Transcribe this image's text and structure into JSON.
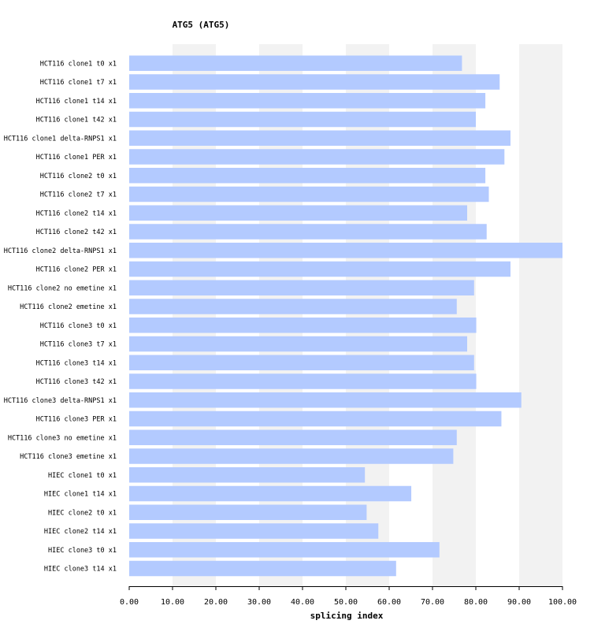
{
  "chart_data": {
    "type": "bar",
    "orientation": "horizontal",
    "title": "ATG5 (ATG5)",
    "xlabel": "splicing index",
    "ylabel": "",
    "xlim": [
      0,
      100
    ],
    "xticks": [
      "0.00",
      "10.00",
      "20.00",
      "30.00",
      "40.00",
      "50.00",
      "60.00",
      "70.00",
      "80.00",
      "90.00",
      "100.00"
    ],
    "grid": "alternating-vertical-bands",
    "bar_color": "#b3caff",
    "band_color": "#f2f2f2",
    "categories": [
      "HCT116 clone1 t0 x1",
      "HCT116 clone1 t7 x1",
      "HCT116 clone1 t14 x1",
      "HCT116 clone1 t42 x1",
      "HCT116 clone1 delta-RNPS1 x1",
      "HCT116 clone1 PER x1",
      "HCT116 clone2 t0 x1",
      "HCT116 clone2 t7 x1",
      "HCT116 clone2 t14 x1",
      "HCT116 clone2 t42 x1",
      "HCT116 clone2 delta-RNPS1 x1",
      "HCT116 clone2 PER x1",
      "HCT116 clone2 no emetine x1",
      "HCT116 clone2 emetine x1",
      "HCT116 clone3 t0 x1",
      "HCT116 clone3 t7 x1",
      "HCT116 clone3 t14 x1",
      "HCT116 clone3 t42 x1",
      "HCT116 clone3 delta-RNPS1 x1",
      "HCT116 clone3 PER x1",
      "HCT116 clone3 no emetine x1",
      "HCT116 clone3 emetine x1",
      "HIEC clone1 t0 x1",
      "HIEC clone1 t14 x1",
      "HIEC clone2 t0 x1",
      "HIEC clone2 t14 x1",
      "HIEC clone3 t0 x1",
      "HIEC clone3 t14 x1"
    ],
    "values": [
      76.8,
      85.5,
      82.2,
      80.0,
      88.0,
      86.6,
      82.2,
      83.0,
      78.0,
      82.5,
      100.0,
      88.0,
      79.6,
      75.6,
      80.1,
      78.0,
      79.6,
      80.1,
      90.5,
      85.9,
      75.6,
      74.8,
      54.4,
      65.1,
      54.8,
      57.5,
      71.6,
      61.6
    ]
  }
}
